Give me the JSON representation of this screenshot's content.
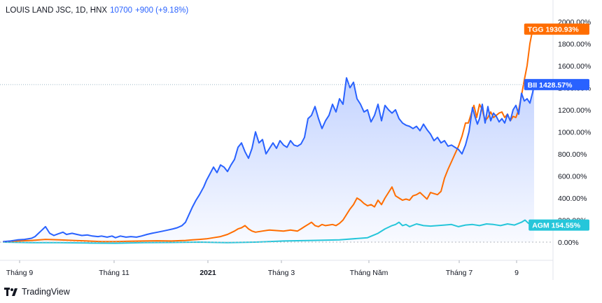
{
  "header": {
    "symbol": "LOUIS LAND JSC, 1D, HNX",
    "price": "10700",
    "change": "+900 (+9.18%)"
  },
  "footer": {
    "brand": "TradingView",
    "logo_icon": "tradingview-logo-icon"
  },
  "chart_data": {
    "type": "line",
    "title": "",
    "x_labels": [
      "Tháng 9",
      "Tháng 11",
      "2021",
      "Tháng 3",
      "Tháng Năm",
      "Tháng 7",
      "9"
    ],
    "y_ticks": [
      "0.00%",
      "200.00%",
      "400.00%",
      "600.00%",
      "800.00%",
      "1000.00%",
      "1200.00%",
      "1400.00%",
      "1600.00%",
      "1800.00%",
      "2000.00%"
    ],
    "ylim": [
      -160,
      2040
    ],
    "grid": false,
    "series": [
      {
        "name": "BII",
        "color": "#2962ff",
        "label": "1428.57%",
        "last_value": 1428.57,
        "area_fill": true,
        "points": [
          [
            0,
            5
          ],
          [
            10,
            10
          ],
          [
            20,
            20
          ],
          [
            30,
            25
          ],
          [
            40,
            35
          ],
          [
            45,
            50
          ],
          [
            50,
            80
          ],
          [
            55,
            110
          ],
          [
            60,
            140
          ],
          [
            66,
            80
          ],
          [
            72,
            60
          ],
          [
            78,
            75
          ],
          [
            85,
            90
          ],
          [
            90,
            70
          ],
          [
            98,
            80
          ],
          [
            105,
            70
          ],
          [
            112,
            60
          ],
          [
            120,
            65
          ],
          [
            127,
            55
          ],
          [
            135,
            50
          ],
          [
            140,
            55
          ],
          [
            148,
            45
          ],
          [
            155,
            55
          ],
          [
            160,
            40
          ],
          [
            167,
            55
          ],
          [
            175,
            45
          ],
          [
            182,
            50
          ],
          [
            190,
            45
          ],
          [
            197,
            55
          ],
          [
            205,
            70
          ],
          [
            212,
            80
          ],
          [
            220,
            90
          ],
          [
            228,
            100
          ],
          [
            235,
            110
          ],
          [
            242,
            120
          ],
          [
            248,
            130
          ],
          [
            255,
            150
          ],
          [
            260,
            180
          ],
          [
            265,
            250
          ],
          [
            270,
            320
          ],
          [
            275,
            380
          ],
          [
            280,
            430
          ],
          [
            286,
            500
          ],
          [
            290,
            560
          ],
          [
            295,
            620
          ],
          [
            300,
            680
          ],
          [
            305,
            630
          ],
          [
            310,
            700
          ],
          [
            315,
            680
          ],
          [
            320,
            640
          ],
          [
            325,
            700
          ],
          [
            330,
            750
          ],
          [
            335,
            860
          ],
          [
            340,
            900
          ],
          [
            345,
            820
          ],
          [
            350,
            760
          ],
          [
            355,
            850
          ],
          [
            360,
            1000
          ],
          [
            365,
            900
          ],
          [
            370,
            930
          ],
          [
            375,
            800
          ],
          [
            380,
            850
          ],
          [
            385,
            900
          ],
          [
            390,
            850
          ],
          [
            395,
            920
          ],
          [
            400,
            880
          ],
          [
            405,
            860
          ],
          [
            410,
            920
          ],
          [
            415,
            880
          ],
          [
            420,
            870
          ],
          [
            425,
            890
          ],
          [
            430,
            950
          ],
          [
            435,
            1120
          ],
          [
            440,
            1150
          ],
          [
            445,
            1230
          ],
          [
            450,
            1120
          ],
          [
            455,
            1030
          ],
          [
            460,
            1100
          ],
          [
            465,
            1150
          ],
          [
            470,
            1250
          ],
          [
            475,
            1180
          ],
          [
            480,
            1300
          ],
          [
            485,
            1250
          ],
          [
            490,
            1490
          ],
          [
            495,
            1400
          ],
          [
            500,
            1450
          ],
          [
            505,
            1300
          ],
          [
            510,
            1250
          ],
          [
            515,
            1180
          ],
          [
            520,
            1200
          ],
          [
            525,
            1090
          ],
          [
            530,
            1150
          ],
          [
            535,
            1250
          ],
          [
            540,
            1100
          ],
          [
            545,
            1240
          ],
          [
            550,
            1200
          ],
          [
            555,
            1170
          ],
          [
            560,
            1200
          ],
          [
            565,
            1120
          ],
          [
            570,
            1080
          ],
          [
            575,
            1060
          ],
          [
            580,
            1050
          ],
          [
            585,
            1030
          ],
          [
            590,
            1050
          ],
          [
            595,
            1010
          ],
          [
            600,
            1070
          ],
          [
            605,
            1020
          ],
          [
            610,
            980
          ],
          [
            615,
            920
          ],
          [
            620,
            950
          ],
          [
            625,
            900
          ],
          [
            630,
            920
          ],
          [
            635,
            870
          ],
          [
            640,
            880
          ],
          [
            645,
            860
          ],
          [
            650,
            840
          ],
          [
            655,
            800
          ],
          [
            660,
            880
          ],
          [
            665,
            1000
          ],
          [
            670,
            1220
          ],
          [
            673,
            1150
          ],
          [
            677,
            1070
          ],
          [
            680,
            1120
          ],
          [
            684,
            1250
          ],
          [
            688,
            1080
          ],
          [
            692,
            1230
          ],
          [
            696,
            1100
          ],
          [
            700,
            1170
          ],
          [
            704,
            1140
          ],
          [
            708,
            1090
          ],
          [
            712,
            1120
          ],
          [
            716,
            1080
          ],
          [
            720,
            1160
          ],
          [
            724,
            1100
          ],
          [
            728,
            1200
          ],
          [
            732,
            1240
          ],
          [
            736,
            1160
          ],
          [
            740,
            1350
          ],
          [
            744,
            1280
          ],
          [
            748,
            1300
          ],
          [
            752,
            1260
          ],
          [
            756,
            1360
          ],
          [
            758,
            1428.57
          ]
        ]
      },
      {
        "name": "TGG",
        "color": "#ff6d00",
        "label": "1930.93%",
        "last_value": 1930.93,
        "area_fill": false,
        "points": [
          [
            0,
            5
          ],
          [
            20,
            10
          ],
          [
            40,
            15
          ],
          [
            60,
            25
          ],
          [
            80,
            20
          ],
          [
            100,
            15
          ],
          [
            120,
            10
          ],
          [
            140,
            5
          ],
          [
            160,
            5
          ],
          [
            180,
            8
          ],
          [
            200,
            10
          ],
          [
            220,
            12
          ],
          [
            240,
            10
          ],
          [
            260,
            15
          ],
          [
            270,
            20
          ],
          [
            280,
            25
          ],
          [
            290,
            30
          ],
          [
            300,
            40
          ],
          [
            310,
            50
          ],
          [
            320,
            70
          ],
          [
            330,
            100
          ],
          [
            335,
            120
          ],
          [
            340,
            130
          ],
          [
            345,
            150
          ],
          [
            350,
            120
          ],
          [
            355,
            100
          ],
          [
            360,
            90
          ],
          [
            370,
            100
          ],
          [
            380,
            110
          ],
          [
            390,
            105
          ],
          [
            400,
            100
          ],
          [
            410,
            110
          ],
          [
            420,
            100
          ],
          [
            425,
            120
          ],
          [
            430,
            140
          ],
          [
            435,
            160
          ],
          [
            440,
            180
          ],
          [
            445,
            150
          ],
          [
            450,
            140
          ],
          [
            455,
            160
          ],
          [
            460,
            150
          ],
          [
            465,
            155
          ],
          [
            470,
            160
          ],
          [
            475,
            150
          ],
          [
            480,
            170
          ],
          [
            485,
            200
          ],
          [
            490,
            250
          ],
          [
            495,
            300
          ],
          [
            500,
            340
          ],
          [
            505,
            400
          ],
          [
            510,
            380
          ],
          [
            515,
            350
          ],
          [
            520,
            330
          ],
          [
            525,
            340
          ],
          [
            530,
            320
          ],
          [
            535,
            380
          ],
          [
            540,
            340
          ],
          [
            545,
            400
          ],
          [
            550,
            450
          ],
          [
            555,
            500
          ],
          [
            560,
            420
          ],
          [
            565,
            400
          ],
          [
            570,
            380
          ],
          [
            575,
            390
          ],
          [
            580,
            380
          ],
          [
            585,
            420
          ],
          [
            590,
            430
          ],
          [
            595,
            450
          ],
          [
            600,
            420
          ],
          [
            605,
            390
          ],
          [
            610,
            450
          ],
          [
            615,
            440
          ],
          [
            620,
            430
          ],
          [
            625,
            460
          ],
          [
            630,
            580
          ],
          [
            635,
            660
          ],
          [
            640,
            730
          ],
          [
            645,
            800
          ],
          [
            650,
            870
          ],
          [
            655,
            960
          ],
          [
            660,
            1080
          ],
          [
            664,
            1080
          ],
          [
            668,
            1160
          ],
          [
            672,
            1240
          ],
          [
            676,
            1130
          ],
          [
            680,
            1250
          ],
          [
            684,
            1200
          ],
          [
            688,
            1100
          ],
          [
            692,
            1130
          ],
          [
            696,
            1180
          ],
          [
            700,
            1130
          ],
          [
            704,
            1150
          ],
          [
            708,
            1170
          ],
          [
            712,
            1180
          ],
          [
            716,
            1130
          ],
          [
            720,
            1160
          ],
          [
            724,
            1100
          ],
          [
            728,
            1140
          ],
          [
            732,
            1130
          ],
          [
            736,
            1200
          ],
          [
            740,
            1330
          ],
          [
            744,
            1470
          ],
          [
            748,
            1600
          ],
          [
            752,
            1800
          ],
          [
            756,
            1930.93
          ]
        ]
      },
      {
        "name": "AGM",
        "color": "#26c6da",
        "label": "154.55%",
        "last_value": 154.55,
        "area_fill": false,
        "points": [
          [
            0,
            0
          ],
          [
            40,
            -5
          ],
          [
            80,
            -5
          ],
          [
            120,
            -8
          ],
          [
            160,
            -10
          ],
          [
            200,
            -5
          ],
          [
            240,
            -3
          ],
          [
            280,
            0
          ],
          [
            320,
            -5
          ],
          [
            360,
            0
          ],
          [
            400,
            10
          ],
          [
            440,
            15
          ],
          [
            480,
            20
          ],
          [
            520,
            40
          ],
          [
            535,
            80
          ],
          [
            545,
            120
          ],
          [
            555,
            150
          ],
          [
            560,
            160
          ],
          [
            565,
            180
          ],
          [
            570,
            150
          ],
          [
            575,
            160
          ],
          [
            580,
            140
          ],
          [
            590,
            165
          ],
          [
            600,
            150
          ],
          [
            610,
            145
          ],
          [
            620,
            150
          ],
          [
            630,
            155
          ],
          [
            640,
            160
          ],
          [
            650,
            140
          ],
          [
            660,
            155
          ],
          [
            670,
            160
          ],
          [
            680,
            150
          ],
          [
            690,
            165
          ],
          [
            700,
            160
          ],
          [
            710,
            150
          ],
          [
            720,
            165
          ],
          [
            730,
            155
          ],
          [
            740,
            180
          ],
          [
            745,
            200
          ],
          [
            750,
            170
          ],
          [
            756,
            154.55
          ]
        ]
      }
    ],
    "reference_line_value": 1428.57
  }
}
